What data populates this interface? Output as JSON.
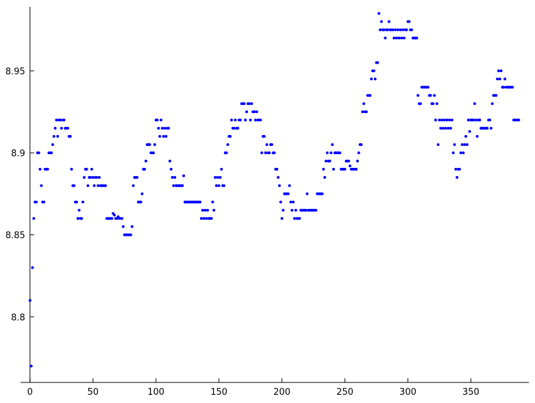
{
  "chart_data": {
    "type": "scatter",
    "xlim": [
      -7.5,
      396
    ],
    "ylim": [
      8.76,
      8.989
    ],
    "xticks": [
      0,
      50,
      100,
      150,
      200,
      250,
      300,
      350
    ],
    "yticks": [
      8.8,
      8.85,
      8.9,
      8.95
    ],
    "series": [
      {
        "color": "#0000ff",
        "x": [
          0,
          1,
          2,
          3,
          4,
          5,
          6,
          7,
          8,
          9,
          10,
          11,
          12,
          13,
          14,
          15,
          16,
          17,
          18,
          19,
          20,
          21,
          22,
          23,
          24,
          25,
          26,
          27,
          28,
          29,
          30,
          31,
          32,
          33,
          34,
          35,
          36,
          37,
          38,
          39,
          40,
          41,
          42,
          43,
          44,
          45,
          46,
          47,
          48,
          49,
          50,
          51,
          52,
          53,
          54,
          55,
          56,
          57,
          58,
          59,
          60,
          61,
          62,
          63,
          64,
          65,
          66,
          67,
          68,
          69,
          70,
          71,
          72,
          73,
          74,
          75,
          76,
          77,
          78,
          79,
          80,
          81,
          82,
          83,
          84,
          85,
          86,
          87,
          88,
          89,
          90,
          91,
          92,
          93,
          94,
          95,
          96,
          97,
          98,
          99,
          100,
          101,
          102,
          103,
          104,
          105,
          106,
          107,
          108,
          109,
          110,
          111,
          112,
          113,
          114,
          115,
          116,
          117,
          118,
          119,
          120,
          121,
          122,
          123,
          124,
          125,
          126,
          127,
          128,
          129,
          130,
          131,
          132,
          133,
          134,
          135,
          136,
          137,
          138,
          139,
          140,
          141,
          142,
          143,
          144,
          145,
          146,
          147,
          148,
          149,
          150,
          151,
          152,
          153,
          154,
          155,
          156,
          157,
          158,
          159,
          160,
          161,
          162,
          163,
          164,
          165,
          166,
          167,
          168,
          169,
          170,
          171,
          172,
          173,
          174,
          175,
          176,
          177,
          178,
          179,
          180,
          181,
          182,
          183,
          184,
          185,
          186,
          187,
          188,
          189,
          190,
          191,
          192,
          193,
          194,
          195,
          196,
          197,
          198,
          199,
          200,
          201,
          202,
          203,
          204,
          205,
          206,
          207,
          208,
          209,
          210,
          211,
          212,
          213,
          214,
          215,
          216,
          217,
          218,
          219,
          220,
          221,
          222,
          223,
          224,
          225,
          226,
          227,
          228,
          229,
          230,
          231,
          232,
          233,
          234,
          235,
          236,
          237,
          238,
          239,
          240,
          241,
          242,
          243,
          244,
          245,
          246,
          247,
          248,
          249,
          250,
          251,
          252,
          253,
          254,
          255,
          256,
          257,
          258,
          259,
          260,
          261,
          262,
          263,
          264,
          265,
          266,
          267,
          268,
          269,
          270,
          271,
          272,
          273,
          274,
          275,
          276,
          277,
          278,
          279,
          280,
          281,
          282,
          283,
          284,
          285,
          286,
          287,
          288,
          289,
          290,
          291,
          292,
          293,
          294,
          295,
          296,
          297,
          298,
          299,
          300,
          301,
          302,
          303,
          304,
          305,
          306,
          307,
          308,
          309,
          310,
          311,
          312,
          313,
          314,
          315,
          316,
          317,
          318,
          319,
          320,
          321,
          322,
          323,
          324,
          325,
          326,
          327,
          328,
          329,
          330,
          331,
          332,
          333,
          334,
          335,
          336,
          337,
          338,
          339,
          340,
          341,
          342,
          343,
          344,
          345,
          346,
          347,
          348,
          349,
          350,
          351,
          352,
          353,
          354,
          355,
          356,
          357,
          358,
          359,
          360,
          361,
          362,
          363,
          364,
          365,
          366,
          367,
          368,
          369,
          370,
          371,
          372,
          373,
          374,
          375,
          376,
          377,
          378,
          379,
          380,
          381,
          382,
          383,
          384,
          385,
          386,
          387,
          388
        ],
        "values": [
          8.81,
          8.77,
          8.83,
          8.86,
          8.87,
          8.87,
          8.9,
          8.9,
          8.89,
          8.88,
          8.87,
          8.87,
          8.89,
          8.89,
          8.89,
          8.9,
          8.9,
          8.9,
          8.905,
          8.91,
          8.915,
          8.92,
          8.91,
          8.92,
          8.92,
          8.915,
          8.92,
          8.92,
          8.915,
          8.915,
          8.915,
          8.91,
          8.91,
          8.89,
          8.88,
          8.88,
          8.87,
          8.87,
          8.86,
          8.865,
          8.86,
          8.86,
          8.87,
          8.885,
          8.89,
          8.89,
          8.88,
          8.885,
          8.885,
          8.89,
          8.885,
          8.88,
          8.885,
          8.885,
          8.88,
          8.885,
          8.88,
          8.88,
          8.88,
          8.88,
          8.88,
          8.86,
          8.86,
          8.86,
          8.86,
          8.86,
          8.863,
          8.862,
          8.86,
          8.86,
          8.861,
          8.86,
          8.86,
          8.86,
          8.855,
          8.85,
          8.85,
          8.85,
          8.85,
          8.85,
          8.85,
          8.855,
          8.88,
          8.885,
          8.885,
          8.885,
          8.87,
          8.87,
          8.87,
          8.875,
          8.89,
          8.89,
          8.895,
          8.905,
          8.905,
          8.905,
          8.9,
          8.9,
          8.9,
          8.905,
          8.92,
          8.92,
          8.915,
          8.91,
          8.92,
          8.915,
          8.91,
          8.915,
          8.91,
          8.915,
          8.915,
          8.895,
          8.89,
          8.885,
          8.88,
          8.885,
          8.88,
          8.88,
          8.88,
          8.88,
          8.88,
          8.88,
          8.886,
          8.87,
          8.87,
          8.87,
          8.87,
          8.87,
          8.87,
          8.87,
          8.87,
          8.87,
          8.87,
          8.87,
          8.87,
          8.87,
          8.86,
          8.865,
          8.86,
          8.865,
          8.86,
          8.865,
          8.86,
          8.86,
          8.86,
          8.87,
          8.865,
          8.885,
          8.88,
          8.885,
          8.88,
          8.885,
          8.89,
          8.88,
          8.88,
          8.9,
          8.9,
          8.905,
          8.91,
          8.91,
          8.92,
          8.915,
          8.915,
          8.92,
          8.915,
          8.915,
          8.92,
          8.92,
          8.93,
          8.93,
          8.93,
          8.92,
          8.925,
          8.93,
          8.93,
          8.92,
          8.93,
          8.925,
          8.925,
          8.92,
          8.925,
          8.92,
          8.92,
          8.92,
          8.9,
          8.91,
          8.91,
          8.9,
          8.905,
          8.9,
          8.9,
          8.905,
          8.905,
          8.9,
          8.9,
          8.89,
          8.89,
          8.885,
          8.88,
          8.87,
          8.86,
          8.865,
          8.875,
          8.875,
          8.875,
          8.875,
          8.88,
          8.87,
          8.865,
          8.87,
          8.86,
          8.865,
          8.86,
          8.86,
          8.86,
          8.865,
          8.865,
          8.865,
          8.865,
          8.865,
          8.875,
          8.865,
          8.865,
          8.865,
          8.865,
          8.865,
          8.865,
          8.865,
          8.875,
          8.875,
          8.875,
          8.875,
          8.875,
          8.89,
          8.885,
          8.895,
          8.9,
          8.895,
          8.895,
          8.9,
          8.905,
          8.89,
          8.9,
          8.9,
          8.9,
          8.9,
          8.9,
          8.89,
          8.89,
          8.89,
          8.89,
          8.895,
          8.895,
          8.895,
          8.892,
          8.89,
          8.89,
          8.89,
          8.89,
          8.89,
          8.895,
          8.9,
          8.905,
          8.905,
          8.925,
          8.93,
          8.925,
          8.925,
          8.935,
          8.935,
          8.935,
          8.945,
          8.95,
          8.95,
          8.945,
          8.955,
          8.955,
          8.985,
          8.975,
          8.98,
          8.975,
          8.975,
          8.97,
          8.975,
          8.975,
          8.98,
          8.975,
          8.975,
          8.975,
          8.97,
          8.975,
          8.97,
          8.975,
          8.97,
          8.975,
          8.97,
          8.975,
          8.97,
          8.975,
          8.975,
          8.98,
          8.98,
          8.975,
          8.975,
          8.97,
          8.97,
          8.97,
          8.97,
          8.935,
          8.93,
          8.93,
          8.94,
          8.94,
          8.94,
          8.94,
          8.94,
          8.94,
          8.935,
          8.935,
          8.93,
          8.93,
          8.935,
          8.92,
          8.93,
          8.905,
          8.92,
          8.915,
          8.92,
          8.915,
          8.92,
          8.915,
          8.92,
          8.915,
          8.92,
          8.915,
          8.92,
          8.9,
          8.905,
          8.89,
          8.885,
          8.89,
          8.89,
          8.9,
          8.905,
          8.9,
          8.905,
          8.91,
          8.905,
          8.92,
          8.913,
          8.92,
          8.92,
          8.92,
          8.93,
          8.92,
          8.91,
          8.92,
          8.92,
          8.915,
          8.915,
          8.915,
          8.915,
          8.915,
          8.915,
          8.92,
          8.92,
          8.915,
          8.93,
          8.935,
          8.935,
          8.935,
          8.945,
          8.95,
          8.945,
          8.95,
          8.94,
          8.94,
          8.945,
          8.94,
          8.94,
          8.94,
          8.94,
          8.94,
          8.94,
          8.92,
          8.92,
          8.92,
          8.92,
          8.92
        ]
      }
    ]
  }
}
